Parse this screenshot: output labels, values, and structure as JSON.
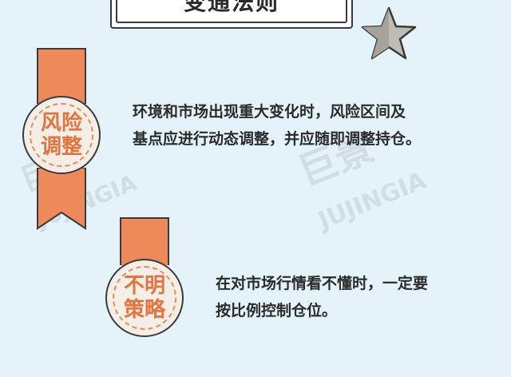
{
  "header": {
    "title": "变通法则"
  },
  "sections": [
    {
      "badge_line1": "风险",
      "badge_line2": "调整",
      "text_line1": "环境和市场出现重大变化时，风险区间及",
      "text_line2": "基点应进行动态调整，并应随即调整持仓。"
    },
    {
      "badge_line1": "不明",
      "badge_line2": "策略",
      "text_line1": "在对市场行情看不懂时，一定要",
      "text_line2": "按比例控制仓位。"
    }
  ],
  "watermark": {
    "cn": "巨景",
    "en": "JUJINGIA"
  },
  "colors": {
    "background": "#e4f3f9",
    "accent": "#ee8a5a",
    "badge_text": "#e8713e"
  },
  "icons": {
    "star": "star-icon"
  }
}
